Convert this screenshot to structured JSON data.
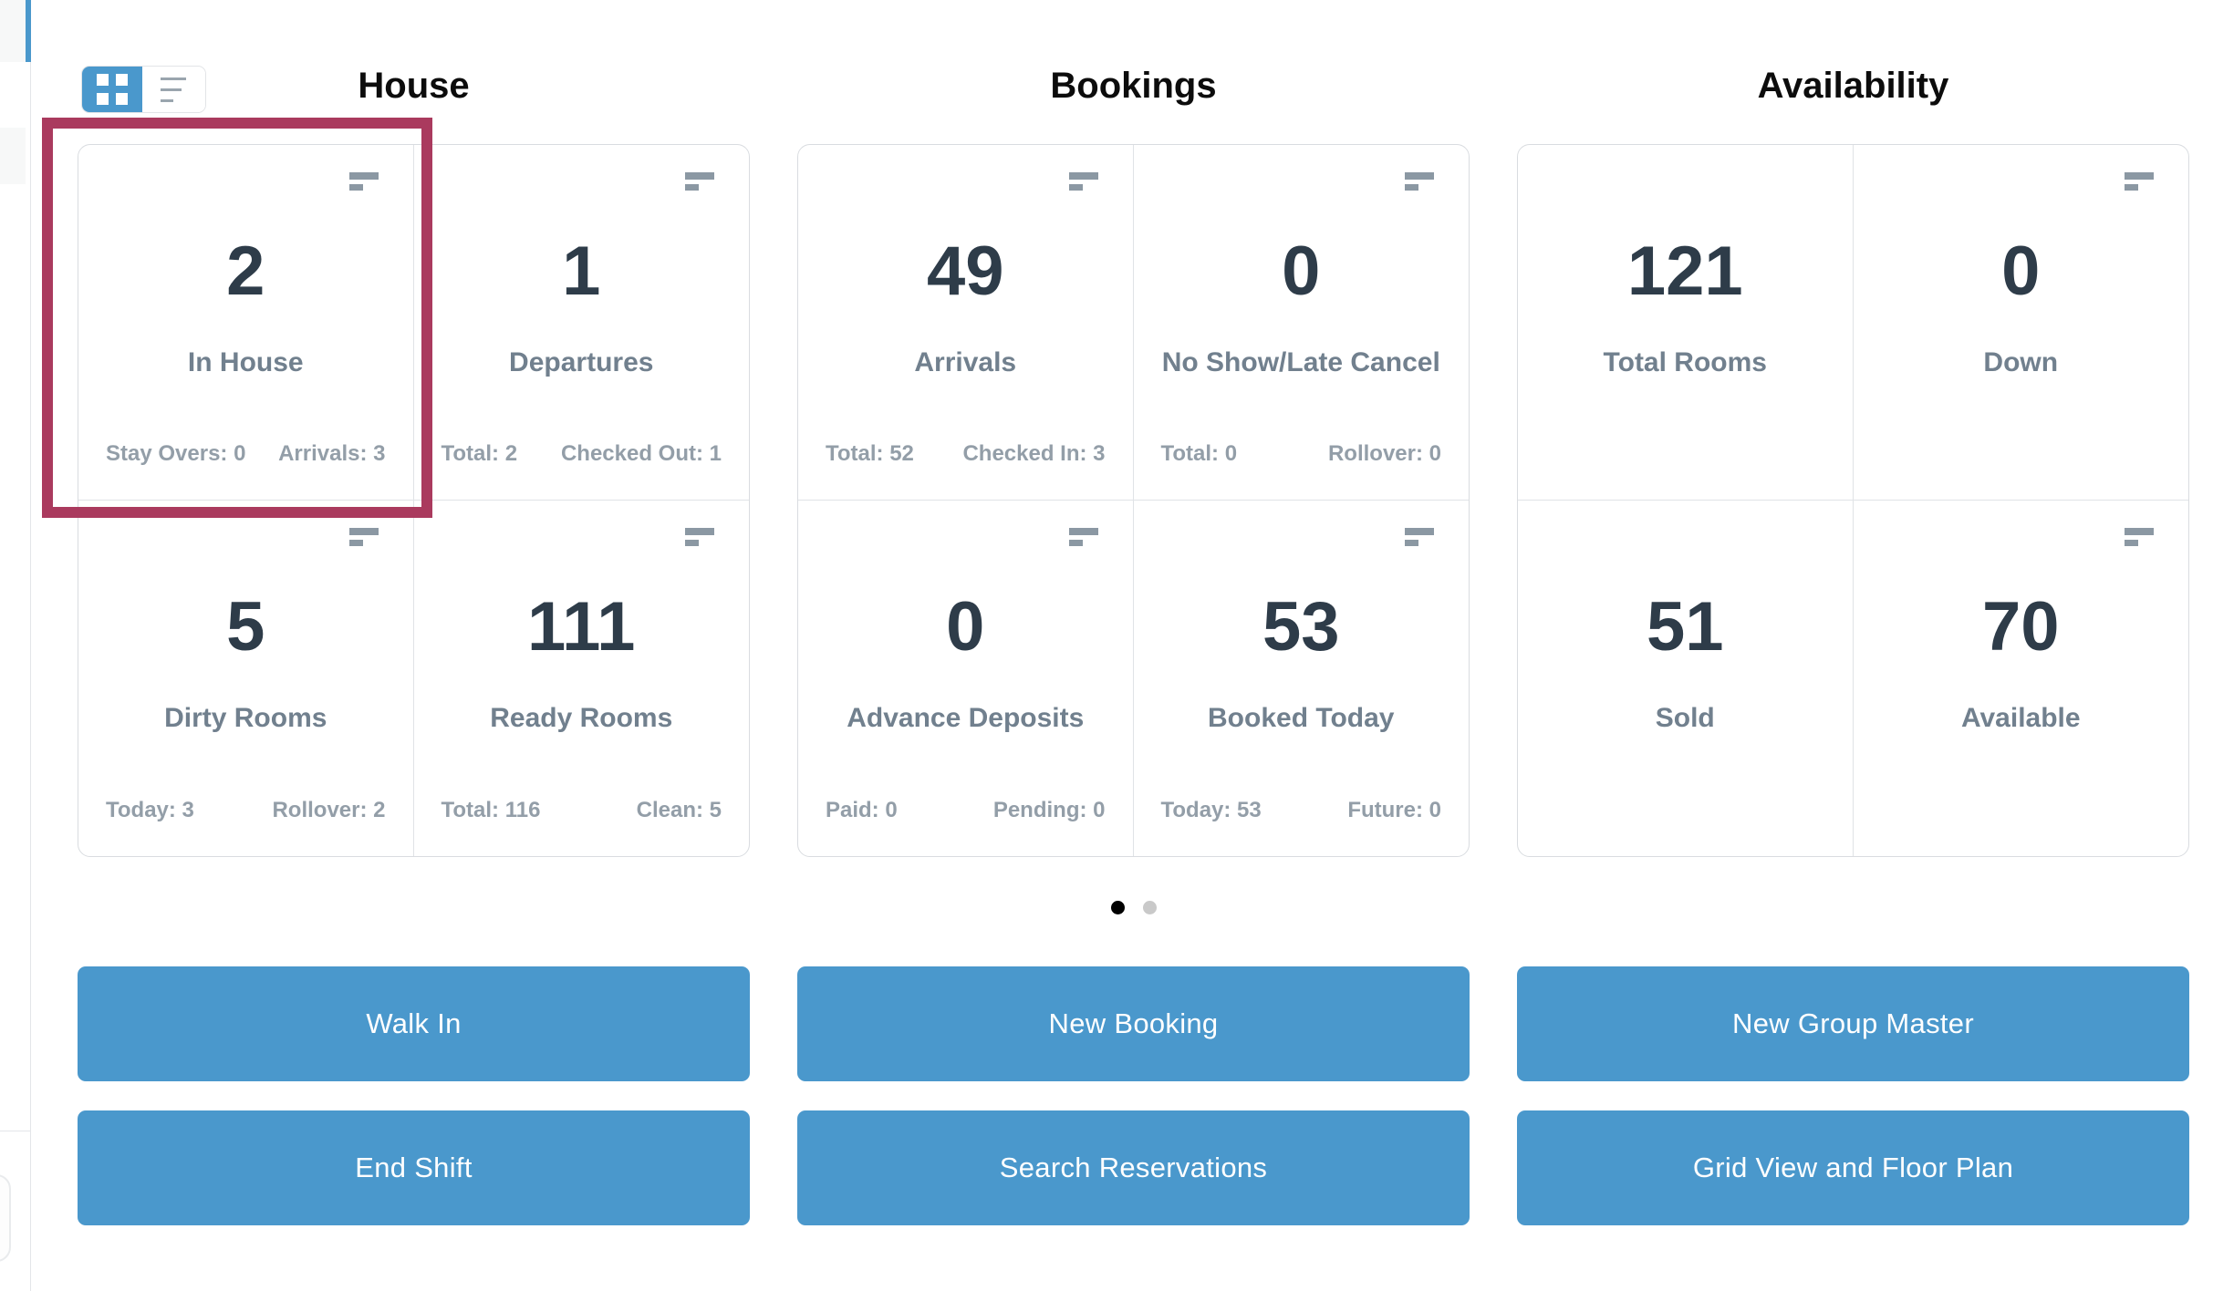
{
  "view_toggle": {
    "grid_button": {
      "icon": "grid-view-icon",
      "active": true
    },
    "list_button": {
      "icon": "list-view-icon",
      "active": false
    }
  },
  "sections": [
    {
      "title": "House",
      "cards": [
        {
          "value": "2",
          "label": "In House",
          "stats": {
            "left": "Stay Overs: 0",
            "right": "Arrivals: 3"
          },
          "menu_icon": true,
          "highlighted": true
        },
        {
          "value": "1",
          "label": "Departures",
          "stats": {
            "left": "Total: 2",
            "right": "Checked Out: 1"
          },
          "menu_icon": true
        },
        {
          "value": "5",
          "label": "Dirty Rooms",
          "stats": {
            "left": "Today: 3",
            "right": "Rollover: 2"
          },
          "menu_icon": true
        },
        {
          "value": "111",
          "label": "Ready Rooms",
          "stats": {
            "left": "Total: 116",
            "right": "Clean: 5"
          },
          "menu_icon": true
        }
      ]
    },
    {
      "title": "Bookings",
      "cards": [
        {
          "value": "49",
          "label": "Arrivals",
          "stats": {
            "left": "Total: 52",
            "right": "Checked In: 3"
          },
          "menu_icon": true
        },
        {
          "value": "0",
          "label": "No Show/Late Cancel",
          "stats": {
            "left": "Total: 0",
            "right": "Rollover: 0"
          },
          "menu_icon": true
        },
        {
          "value": "0",
          "label": "Advance Deposits",
          "stats": {
            "left": "Paid: 0",
            "right": "Pending: 0"
          },
          "menu_icon": true
        },
        {
          "value": "53",
          "label": "Booked Today",
          "stats": {
            "left": "Today: 53",
            "right": "Future: 0"
          },
          "menu_icon": true
        }
      ]
    },
    {
      "title": "Availability",
      "cards": [
        {
          "value": "121",
          "label": "Total Rooms",
          "menu_icon": false
        },
        {
          "value": "0",
          "label": "Down",
          "menu_icon": true
        },
        {
          "value": "51",
          "label": "Sold",
          "menu_icon": false
        },
        {
          "value": "70",
          "label": "Available",
          "menu_icon": true
        }
      ]
    }
  ],
  "pagination": {
    "dot_count": 2,
    "active_index": 0
  },
  "actions": [
    {
      "label": "Walk In"
    },
    {
      "label": "New Booking"
    },
    {
      "label": "New Group Master"
    },
    {
      "label": "End Shift"
    },
    {
      "label": "Search Reservations"
    },
    {
      "label": "Grid View and Floor Plan"
    }
  ],
  "colors": {
    "accent_blue": "#4a98cc",
    "highlight_maroon": "#aa3a5e",
    "number_text": "#2e3c49",
    "label_text": "#71808e",
    "stat_text": "#939ea8",
    "icon_gray": "#8b98a3",
    "dot_active": "#000000",
    "dot_inactive": "#c9c9c9"
  }
}
